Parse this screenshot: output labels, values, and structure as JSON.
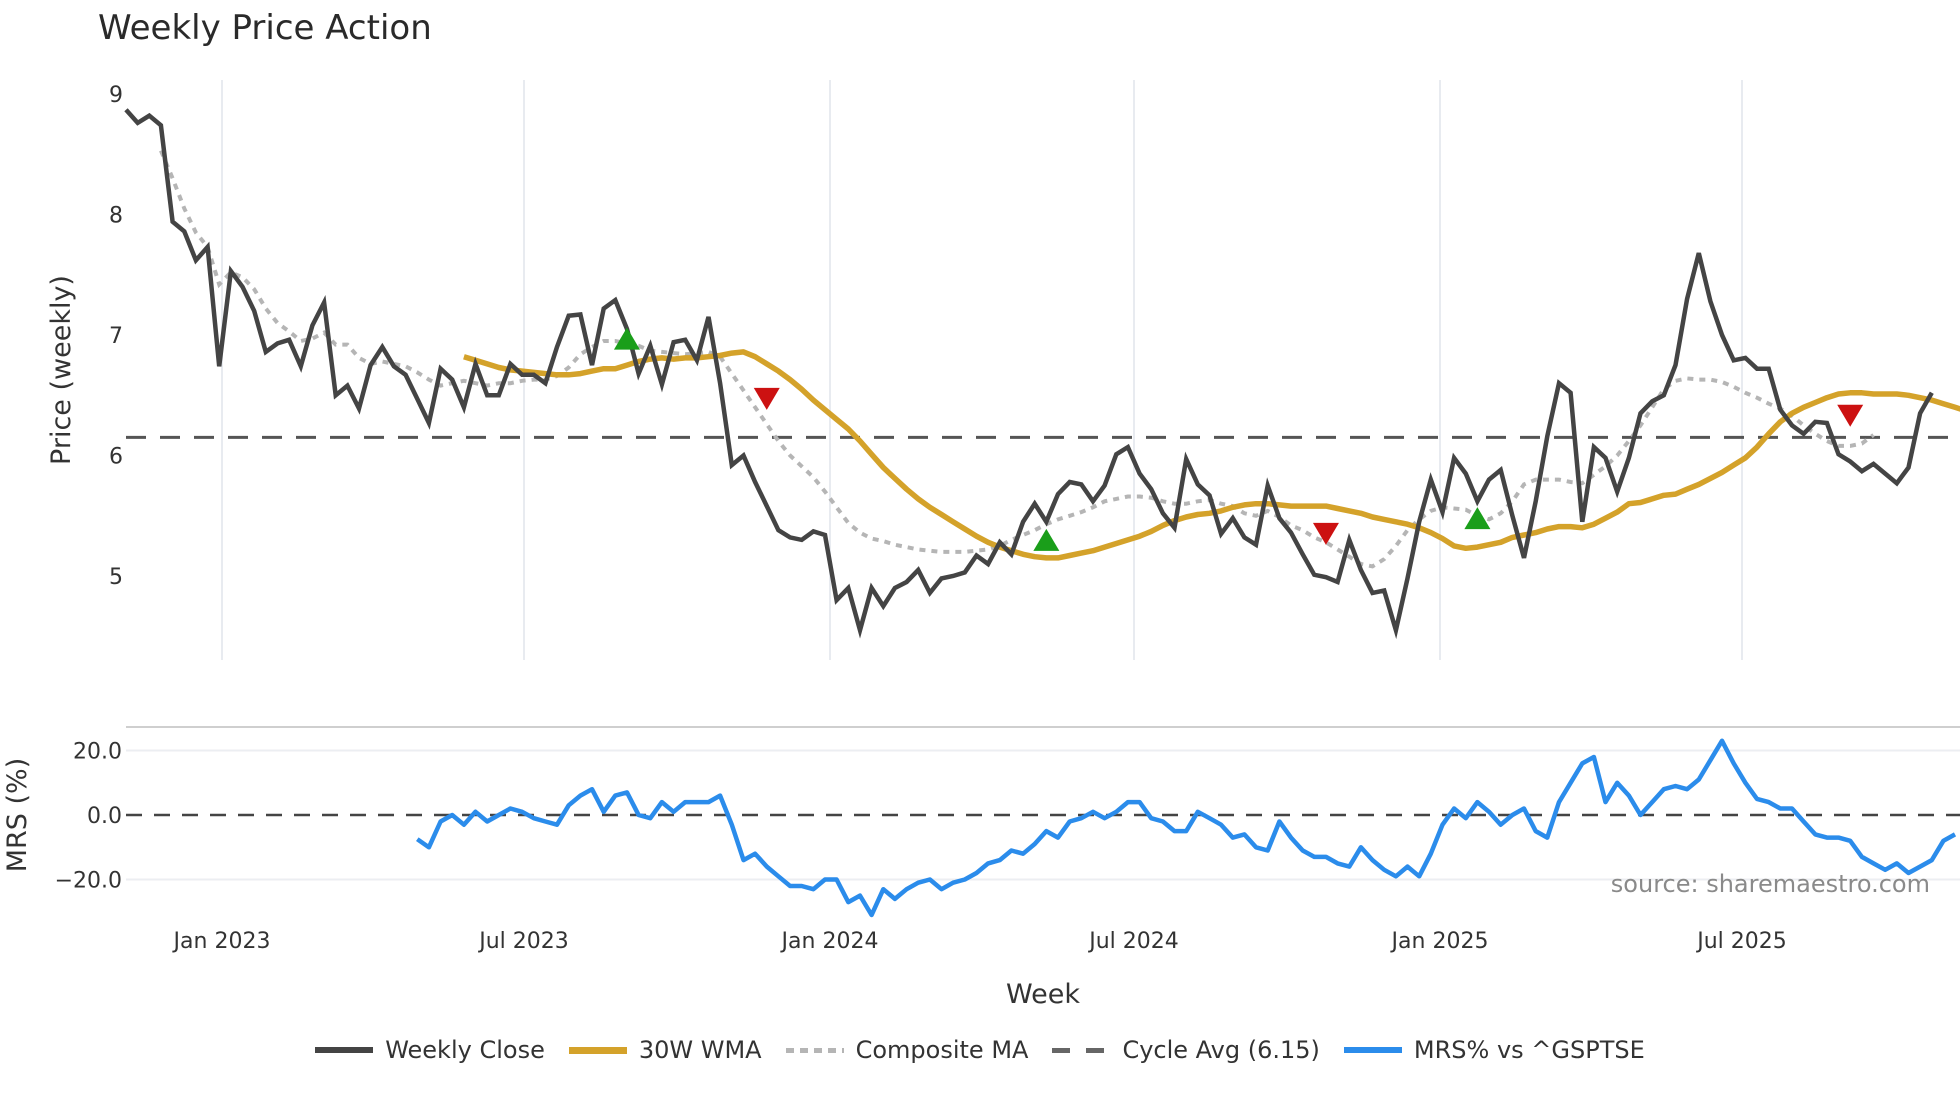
{
  "header": {
    "title": "Weekly Price Action"
  },
  "axes": {
    "price_ylabel": "Price (weekly)",
    "mrs_ylabel": "MRS (%)",
    "xlabel": "Week",
    "price_ticks": [
      "9",
      "8",
      "7",
      "6",
      "5"
    ],
    "mrs_ticks": [
      "20.0",
      "0.0",
      "−20.0"
    ],
    "x_ticks": [
      "Jan 2023",
      "Jul 2023",
      "Jan 2024",
      "Jul 2024",
      "Jan 2025",
      "Jul 2025"
    ]
  },
  "source_note": "source: sharemaestro.com",
  "legend": [
    {
      "label": "Weekly Close",
      "color": "#444444",
      "style": "solid"
    },
    {
      "label": "30W WMA",
      "color": "#d4a22a",
      "style": "solid"
    },
    {
      "label": "Composite MA",
      "color": "#b5b5b5",
      "style": "dotted"
    },
    {
      "label": "Cycle Avg (6.15)",
      "color": "#555555",
      "style": "dashed"
    },
    {
      "label": "MRS% vs ^GSPTSE",
      "color": "#2b8ceb",
      "style": "solid"
    }
  ],
  "colors": {
    "close": "#444444",
    "wma": "#d4a22a",
    "composite": "#b5b5b5",
    "cycle": "#555555",
    "mrs": "#2b8ceb",
    "buy_signal": "#1a9e1a",
    "sell_signal": "#cc1111",
    "grid": "#e8ebf0"
  },
  "chart_data": [
    {
      "type": "line",
      "title": "Weekly Price Action",
      "xlabel": "Week",
      "ylabel": "Price (weekly)",
      "ylim": [
        4.3,
        9.1
      ],
      "x_start": "2022-11-07",
      "x_step": "1 week",
      "x_ticks": [
        "Jan 2023",
        "Jul 2023",
        "Jan 2024",
        "Jul 2024",
        "Jan 2025",
        "Jul 2025"
      ],
      "grid": true,
      "legend_position": "bottom",
      "series": [
        {
          "name": "Weekly Close",
          "start_index": 0,
          "values": [
            8.87,
            8.76,
            8.82,
            8.74,
            7.94,
            7.86,
            7.62,
            7.73,
            6.74,
            7.53,
            7.4,
            7.2,
            6.86,
            6.93,
            6.96,
            6.74,
            7.08,
            7.27,
            6.5,
            6.58,
            6.39,
            6.75,
            6.9,
            6.74,
            6.67,
            6.47,
            6.27,
            6.72,
            6.63,
            6.4,
            6.76,
            6.5,
            6.5,
            6.76,
            6.67,
            6.67,
            6.6,
            6.9,
            7.16,
            7.17,
            6.75,
            7.22,
            7.29,
            7.05,
            6.68,
            6.91,
            6.59,
            6.94,
            6.96,
            6.79,
            7.15,
            6.6,
            5.92,
            6.0,
            5.78,
            5.58,
            5.38,
            5.32,
            5.3,
            5.37,
            5.34,
            4.8,
            4.9,
            4.55,
            4.9,
            4.75,
            4.9,
            4.95,
            5.05,
            4.86,
            4.98,
            5.0,
            5.03,
            5.17,
            5.1,
            5.28,
            5.18,
            5.45,
            5.6,
            5.45,
            5.68,
            5.78,
            5.76,
            5.62,
            5.75,
            6.01,
            6.07,
            5.85,
            5.72,
            5.52,
            5.4,
            5.97,
            5.76,
            5.67,
            5.35,
            5.48,
            5.32,
            5.26,
            5.75,
            5.48,
            5.36,
            5.18,
            5.01,
            4.99,
            4.95,
            5.3,
            5.05,
            4.86,
            4.88,
            4.55,
            4.98,
            5.45,
            5.8,
            5.53,
            5.98,
            5.85,
            5.62,
            5.8,
            5.88,
            5.5,
            5.15,
            5.62,
            6.16,
            6.6,
            6.52,
            5.45,
            6.07,
            5.98,
            5.7,
            5.98,
            6.35,
            6.45,
            6.5,
            6.75,
            7.3,
            7.68,
            7.28,
            7.0,
            6.79,
            6.81,
            6.72,
            6.72,
            6.38,
            6.25,
            6.18,
            6.28,
            6.27,
            6.01,
            5.95,
            5.87,
            5.93,
            5.85,
            5.77,
            5.9,
            6.35,
            6.52
          ]
        },
        {
          "name": "30W WMA",
          "start_index": 29,
          "values": [
            6.82,
            6.79,
            6.76,
            6.73,
            6.71,
            6.7,
            6.69,
            6.68,
            6.67,
            6.67,
            6.68,
            6.7,
            6.72,
            6.72,
            6.75,
            6.78,
            6.8,
            6.81,
            6.8,
            6.81,
            6.81,
            6.82,
            6.83,
            6.85,
            6.86,
            6.82,
            6.76,
            6.7,
            6.63,
            6.55,
            6.46,
            6.38,
            6.3,
            6.22,
            6.12,
            6.01,
            5.9,
            5.81,
            5.72,
            5.64,
            5.57,
            5.51,
            5.45,
            5.39,
            5.33,
            5.28,
            5.24,
            5.21,
            5.18,
            5.16,
            5.15,
            5.15,
            5.17,
            5.19,
            5.21,
            5.24,
            5.27,
            5.3,
            5.33,
            5.37,
            5.42,
            5.46,
            5.49,
            5.51,
            5.52,
            5.54,
            5.57,
            5.59,
            5.6,
            5.6,
            5.59,
            5.58,
            5.58,
            5.58,
            5.58,
            5.56,
            5.54,
            5.52,
            5.49,
            5.47,
            5.45,
            5.43,
            5.4,
            5.36,
            5.31,
            5.25,
            5.23,
            5.24,
            5.26,
            5.28,
            5.32,
            5.34,
            5.36,
            5.39,
            5.41,
            5.41,
            5.4,
            5.43,
            5.48,
            5.53,
            5.6,
            5.61,
            5.64,
            5.67,
            5.68,
            5.72,
            5.76,
            5.81,
            5.86,
            5.92,
            5.98,
            6.07,
            6.18,
            6.28,
            6.35,
            6.4,
            6.44,
            6.48,
            6.51,
            6.52,
            6.52,
            6.51,
            6.51,
            6.51,
            6.5,
            6.48,
            6.46,
            6.43,
            6.4,
            6.37,
            6.34,
            6.3,
            6.28,
            6.29
          ]
        },
        {
          "name": "Composite MA",
          "start_index": 3,
          "values": [
            8.53,
            8.3,
            8.05,
            7.85,
            7.73,
            7.42,
            7.52,
            7.48,
            7.38,
            7.22,
            7.1,
            7.03,
            6.95,
            6.97,
            7.02,
            6.92,
            6.92,
            6.81,
            6.76,
            6.78,
            6.76,
            6.74,
            6.69,
            6.63,
            6.58,
            6.6,
            6.62,
            6.6,
            6.58,
            6.6,
            6.6,
            6.62,
            6.63,
            6.63,
            6.66,
            6.73,
            6.84,
            6.9,
            6.95,
            6.95,
            6.93,
            6.91,
            6.87,
            6.86,
            6.85,
            6.84,
            6.85,
            6.86,
            6.82,
            6.68,
            6.54,
            6.4,
            6.26,
            6.12,
            6.0,
            5.91,
            5.82,
            5.7,
            5.57,
            5.44,
            5.36,
            5.31,
            5.29,
            5.26,
            5.24,
            5.22,
            5.21,
            5.2,
            5.2,
            5.2,
            5.21,
            5.22,
            5.25,
            5.3,
            5.34,
            5.38,
            5.43,
            5.47,
            5.5,
            5.53,
            5.57,
            5.62,
            5.64,
            5.66,
            5.66,
            5.65,
            5.62,
            5.6,
            5.6,
            5.62,
            5.63,
            5.6,
            5.58,
            5.52,
            5.5,
            5.54,
            5.49,
            5.42,
            5.38,
            5.32,
            5.28,
            5.22,
            5.16,
            5.1,
            5.08,
            5.14,
            5.25,
            5.38,
            5.47,
            5.54,
            5.57,
            5.56,
            5.55,
            5.5,
            5.47,
            5.52,
            5.62,
            5.76,
            5.8,
            5.8,
            5.8,
            5.78,
            5.77,
            5.84,
            5.91,
            6.0,
            6.12,
            6.25,
            6.4,
            6.55,
            6.62,
            6.64,
            6.63,
            6.63,
            6.61,
            6.57,
            6.52,
            6.48,
            6.43,
            6.39,
            6.33,
            6.25,
            6.18,
            6.12,
            6.08,
            6.08,
            6.1,
            6.17
          ]
        },
        {
          "name": "Cycle Avg (6.15)",
          "constant": 6.15
        }
      ],
      "annotations": [
        {
          "type": "buy",
          "marker": "triangle-up",
          "index": 43,
          "y": 6.97
        },
        {
          "type": "sell",
          "marker": "triangle-down",
          "index": 55,
          "y": 6.47
        },
        {
          "type": "buy",
          "marker": "triangle-up",
          "index": 79,
          "y": 5.3
        },
        {
          "type": "sell",
          "marker": "triangle-down",
          "index": 103,
          "y": 5.35
        },
        {
          "type": "buy",
          "marker": "triangle-up",
          "index": 116,
          "y": 5.48
        },
        {
          "type": "sell",
          "marker": "triangle-down",
          "index": 148,
          "y": 6.33
        }
      ]
    },
    {
      "type": "line",
      "title": "",
      "xlabel": "Week",
      "ylabel": "MRS (%)",
      "ylim": [
        -31,
        27
      ],
      "y_ticks": [
        20.0,
        0.0,
        -20.0
      ],
      "grid": true,
      "series": [
        {
          "name": "MRS% vs ^GSPTSE",
          "start_index": 25,
          "values": [
            -7.5,
            -10,
            -2,
            0,
            -3,
            1,
            -2,
            0,
            2,
            1,
            -1,
            -2,
            -3,
            3,
            6,
            8,
            1,
            6,
            7,
            0,
            -1,
            4,
            1,
            4,
            4,
            4,
            6,
            -3,
            -14,
            -12,
            -16,
            -19,
            -22,
            -22,
            -23,
            -20,
            -20,
            -27,
            -25,
            -31,
            -23,
            -26,
            -23,
            -21,
            -20,
            -23,
            -21,
            -20,
            -18,
            -15,
            -14,
            -11,
            -12,
            -9,
            -5,
            -7,
            -2,
            -1,
            1,
            -1,
            1,
            4,
            4,
            -1,
            -2,
            -5,
            -5,
            1,
            -1,
            -3,
            -7,
            -6,
            -10,
            -11,
            -2,
            -7,
            -11,
            -13,
            -13,
            -15,
            -16,
            -10,
            -14,
            -17,
            -19,
            -16,
            -19,
            -12,
            -3,
            2,
            -1,
            4,
            1,
            -3,
            0,
            2,
            -5,
            -7,
            4,
            10,
            16,
            18,
            4,
            10,
            6,
            0,
            4,
            8,
            9,
            8,
            11,
            17,
            23,
            16,
            10,
            5,
            4,
            2,
            2,
            -2,
            -6,
            -7,
            -7,
            -8,
            -13,
            -15,
            -17,
            -15,
            -18,
            -16,
            -14,
            -8,
            -6
          ]
        }
      ]
    }
  ]
}
